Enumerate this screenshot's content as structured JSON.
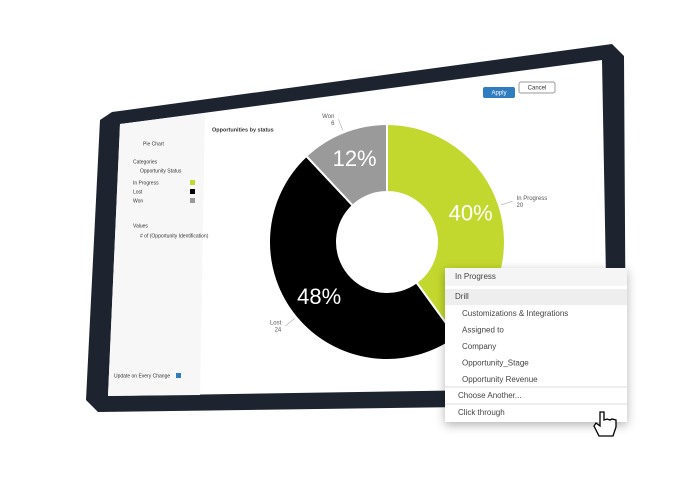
{
  "toolbar": {
    "apply": "Apply",
    "cancel": "Cancel"
  },
  "panel": {
    "chart_kind": "Pie Chart",
    "categories_title": "Categories",
    "category_field": "Opportunity Status",
    "category_items": [
      "In Progress",
      "Lost",
      "Won"
    ],
    "values_title": "Values",
    "value_field": "# of (Opportunity Identification)",
    "update": "Update on Every Change"
  },
  "chart_data": {
    "type": "donut",
    "title": "Opportunities by status",
    "categories": [
      "In Progress",
      "Lost",
      "Won"
    ],
    "values": [
      40,
      48,
      12
    ],
    "value_labels": [
      "40%",
      "48%",
      "12%"
    ],
    "counts": [
      20,
      24,
      6
    ],
    "colors": [
      "#c3d82e",
      "#000000",
      "#9a9a9a"
    ]
  },
  "menu": {
    "header": "In Progress",
    "section": "Drill",
    "items": [
      "Customizations & Integrations",
      "Assigned to",
      "Company",
      "Opportunity_Stage",
      "Opportunity Revenue"
    ],
    "choose": "Choose Another...",
    "click": "Click through"
  }
}
